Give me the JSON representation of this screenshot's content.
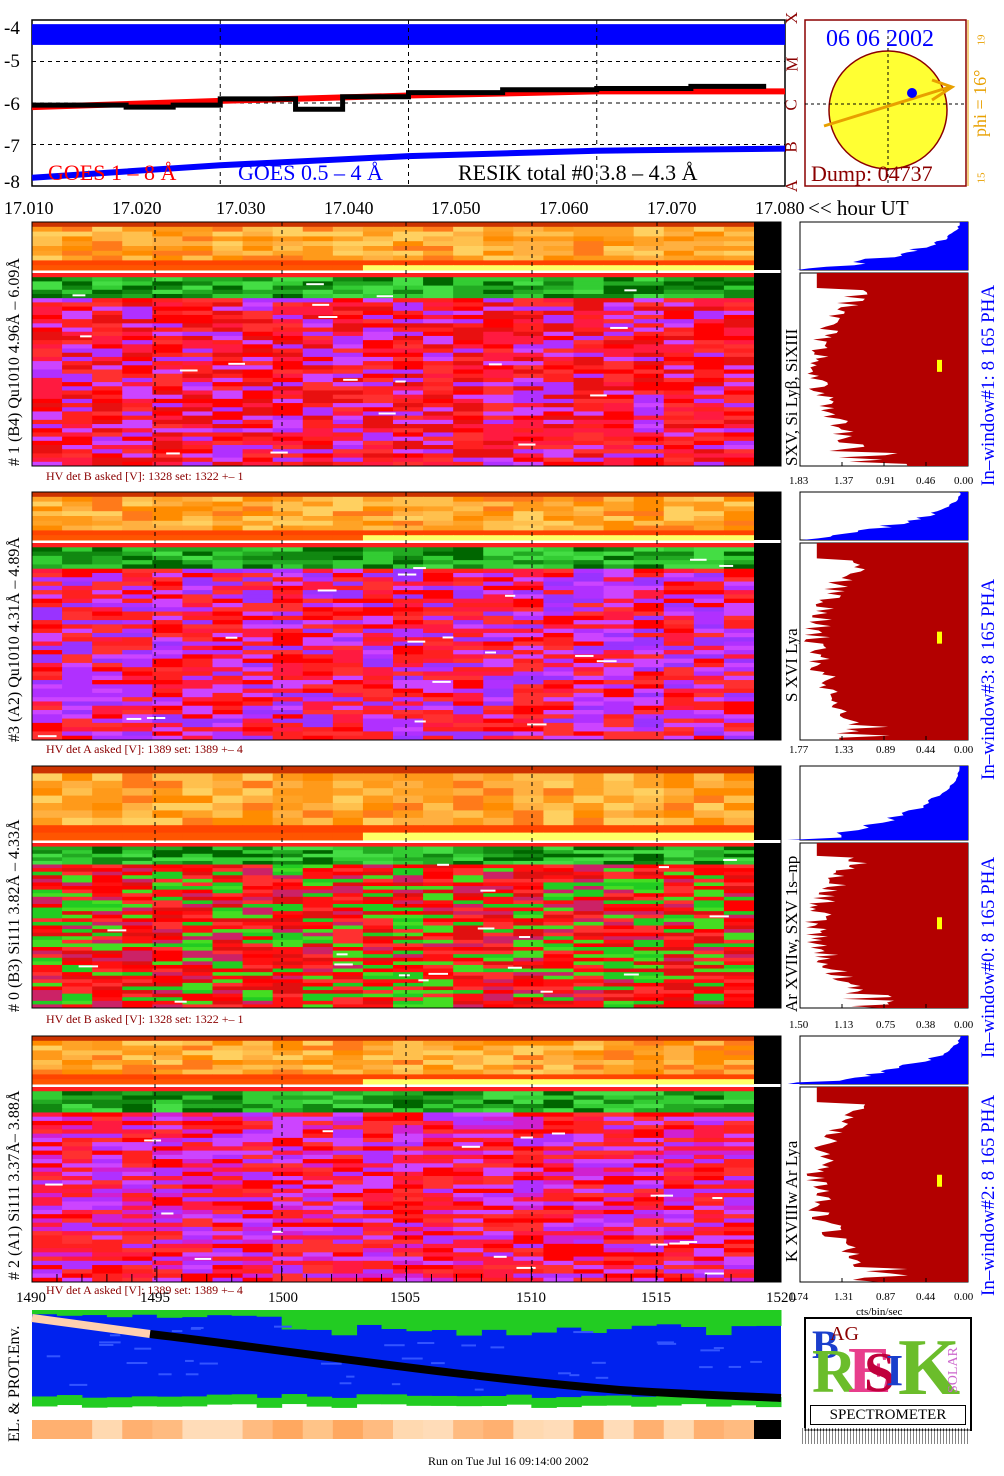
{
  "goes": {
    "y_ticks": [
      "-4",
      "-5",
      "-6",
      "-7",
      "-8"
    ],
    "class_letters": [
      "X",
      "M",
      "C",
      "B",
      "A"
    ],
    "legend_goes_long": "GOES 1 – 8 Å",
    "legend_goes_short": "GOES 0.5 – 4 Å",
    "legend_resik": "RESIK total #0  3.8 – 4.3 Å"
  },
  "time_axis": {
    "ticks": [
      "17.010",
      "17.020",
      "17.030",
      "17.040",
      "17.050",
      "17.060",
      "17.070",
      "17.080"
    ],
    "unit_label": "<< hour UT"
  },
  "sun": {
    "date": "06 06 2002",
    "phi_label": "phi = 16°",
    "dump_label": "Dump: 04737",
    "side_tick_top": "19",
    "side_tick_bottom": "15"
  },
  "channels": [
    {
      "left_label": "# 1 (B4) Qu1010  4.96Å – 6.09Å",
      "right_label": "SXV, Si Lyβ, SiXIII",
      "hv_label": "HV det B asked [V]:  1328 set:  1322  +–    1",
      "ticks": [
        "1.83",
        "1.37",
        "0.91",
        "0.46",
        "0.00"
      ],
      "win_label": "In–window#1:   8 165  PHA"
    },
    {
      "left_label": "#3 (A2) Qu1010  4.31Å – 4.89Å",
      "right_label": "S XVI Lya",
      "hv_label": "HV det A asked [V]:  1389 set:  1389  +–    4",
      "ticks": [
        "1.77",
        "1.33",
        "0.89",
        "0.44",
        "0.00"
      ],
      "win_label": "In–window#3:   8 165 PHA"
    },
    {
      "left_label": "# 0 (B3) Si111  3.82Å – 4.33Å",
      "right_label": "Ar XVIIw, SXV 1s–np",
      "hv_label": "HV det B asked [V]:  1328 set:  1322  +–    1",
      "ticks": [
        "1.50",
        "1.13",
        "0.75",
        "0.38",
        "0.00"
      ],
      "win_label": "In–window#0:   8 165  PHA"
    },
    {
      "left_label": "# 2 (A1) Si111  3.37Å–  3.88Å",
      "right_label": "K XVIIIw  Ar Lya",
      "hv_label": "HV det A asked [V]:  1389 set:  1389  +–    4",
      "ticks": [
        "1.74",
        "1.31",
        "0.87",
        "0.44",
        "0.00"
      ],
      "win_label": "In–window#2:   8 165  PHA"
    }
  ],
  "bottom_axis": {
    "ticks": [
      "1490",
      "1495",
      "1500",
      "1505",
      "1510",
      "1515",
      "1520"
    ],
    "unit_label": "cts/bin/sec"
  },
  "env_label": "EL. & PROT.Env.",
  "logo": {
    "b": "B",
    "r": "R",
    "ag": "AG",
    "e": "E",
    "s": "S",
    "i": "I",
    "k": "K",
    "solar": "SOLAR",
    "spectrometer": "SPECTROMETER"
  },
  "footer": "Run on Tue Jul 16 09:14:00 2002",
  "chart_data": {
    "type": "line",
    "x_label": "<< hour UT",
    "x_range": [
      17.0,
      17.08
    ],
    "ylim": [
      -8,
      -4
    ],
    "series": [
      {
        "name": "GOES 1 – 8 Å",
        "color": "#ff0000",
        "x": [
          17.0,
          17.02,
          17.04,
          17.06,
          17.08
        ],
        "y": [
          -6.1,
          -5.95,
          -5.82,
          -5.72,
          -5.72
        ]
      },
      {
        "name": "GOES 0.5 – 4 Å",
        "color": "#0000ff",
        "x": [
          17.0,
          17.02,
          17.04,
          17.06,
          17.08
        ],
        "y": [
          -7.8,
          -7.5,
          -7.28,
          -7.15,
          -7.1
        ]
      },
      {
        "name": "RESIK total #0  3.8 – 4.3 Å",
        "color": "#000000",
        "x": [
          17.0,
          17.01,
          17.015,
          17.02,
          17.028,
          17.033,
          17.04,
          17.05,
          17.06,
          17.07,
          17.078
        ],
        "y": [
          -6.05,
          -6.1,
          -6.05,
          -5.9,
          -6.15,
          -5.85,
          -5.75,
          -5.68,
          -5.65,
          -5.6,
          -5.6
        ]
      }
    ],
    "colors": {
      "goes_long": "#ff0000",
      "goes_short": "#0000ff",
      "resik": "#000000",
      "spectrum_fill": "#b30000",
      "pha_fill": "#0000ff",
      "sun": "#ffff33",
      "label_red": "#8b0000",
      "label_orange": "#e8a000"
    }
  }
}
